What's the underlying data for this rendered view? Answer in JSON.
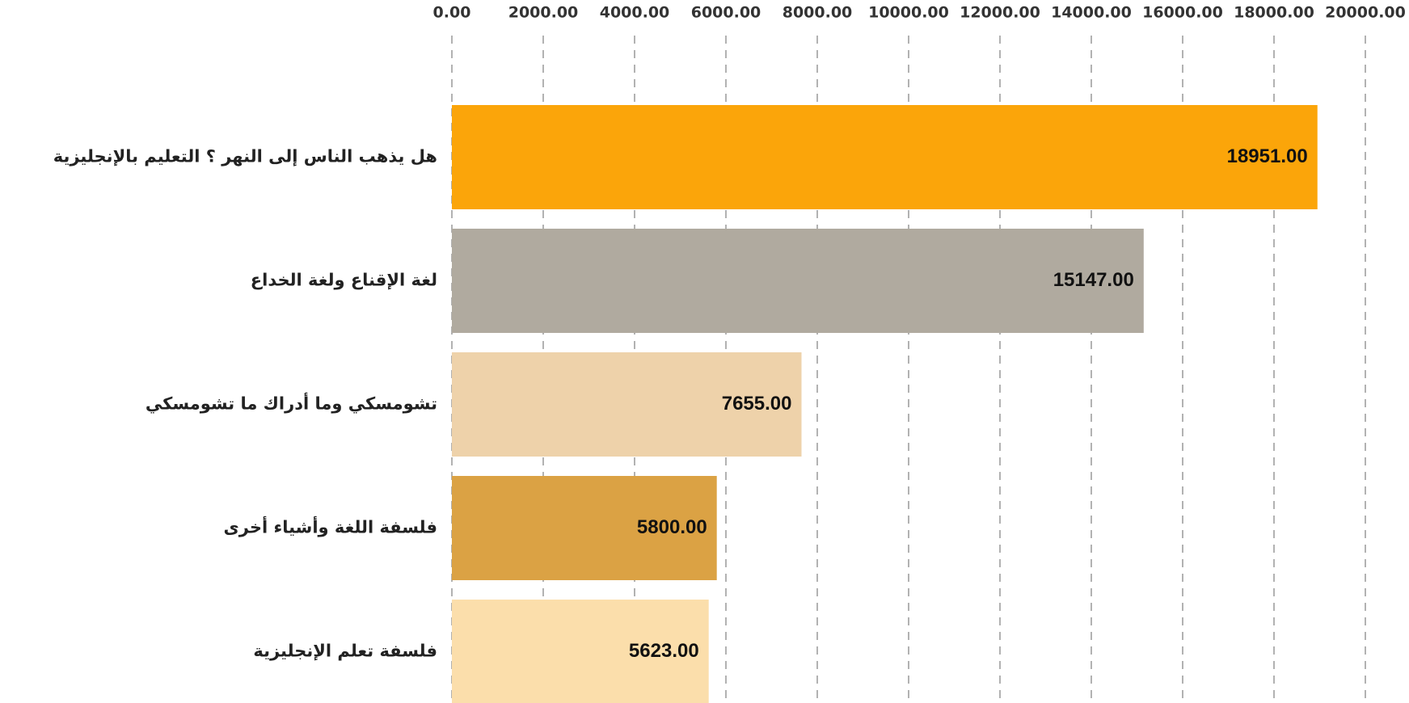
{
  "chart_data": {
    "type": "bar",
    "orientation": "horizontal",
    "categories": [
      "هل يذهب الناس إلى النهر ؟ التعليم بالإنجليزية",
      "لغة الإقناع ولغة الخداع",
      "تشومسكي وما أدراك ما تشومسكي",
      "فلسفة اللغة وأشياء أخرى",
      "فلسفة تعلم الإنجليزية"
    ],
    "values": [
      18951,
      15147,
      7655,
      5800,
      5623
    ],
    "value_labels": [
      "18951.00",
      "15147.00",
      "7655.00",
      "5800.00",
      "5623.00"
    ],
    "colors": [
      "#fba50a",
      "#b0aa9f",
      "#eed2aa",
      "#dba244",
      "#fbdeab"
    ],
    "xlim": [
      0,
      20000
    ],
    "xticks": [
      {
        "value": 0,
        "label": "0.00"
      },
      {
        "value": 2000,
        "label": "2000.00"
      },
      {
        "value": 4000,
        "label": "4000.00"
      },
      {
        "value": 6000,
        "label": "6000.00"
      },
      {
        "value": 8000,
        "label": "8000.00"
      },
      {
        "value": 10000,
        "label": "10000.00"
      },
      {
        "value": 12000,
        "label": "12000.00"
      },
      {
        "value": 14000,
        "label": "14000.00"
      },
      {
        "value": 16000,
        "label": "16000.00"
      },
      {
        "value": 18000,
        "label": "18000.00"
      },
      {
        "value": 20000,
        "label": "20000.00"
      }
    ],
    "grid": true
  }
}
